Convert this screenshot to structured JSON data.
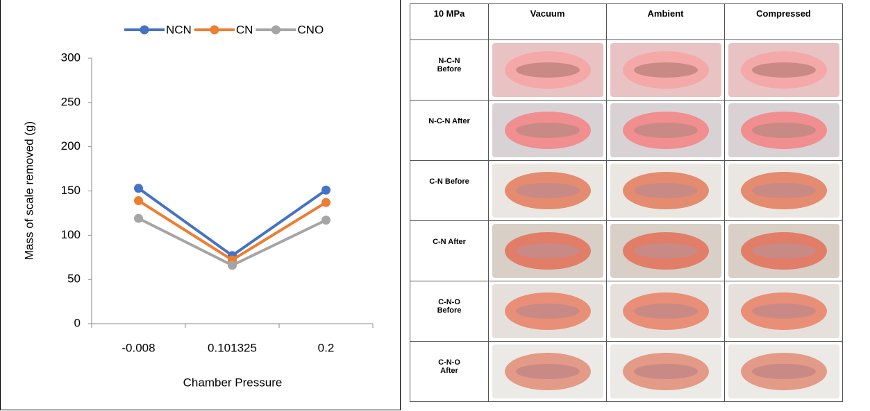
{
  "chart_data": {
    "type": "line",
    "x_label": "Chamber Pressure",
    "y_label": "Mass of scale removed (g)",
    "categories": [
      "-0.008",
      "0.101325",
      "0.2"
    ],
    "series": [
      {
        "name": "NCN",
        "color": "#4472c4",
        "values": [
          153,
          77,
          151
        ]
      },
      {
        "name": "CN",
        "color": "#ed7d31",
        "values": [
          139,
          72,
          137
        ]
      },
      {
        "name": "CNO",
        "color": "#a5a5a5",
        "values": [
          119,
          66,
          117
        ]
      }
    ],
    "ylim": [
      0,
      300
    ],
    "yticks": [
      0,
      50,
      100,
      150,
      200,
      250,
      300
    ],
    "grid": false,
    "legend": "top"
  },
  "table": {
    "columns": [
      "10 MPa",
      "Vacuum",
      "Ambient",
      "Compressed"
    ],
    "rows": [
      "N-C-N Before",
      "N-C-N After",
      "C-N Before",
      "C-N After",
      "C-N-O Before",
      "C-N-O After"
    ]
  }
}
